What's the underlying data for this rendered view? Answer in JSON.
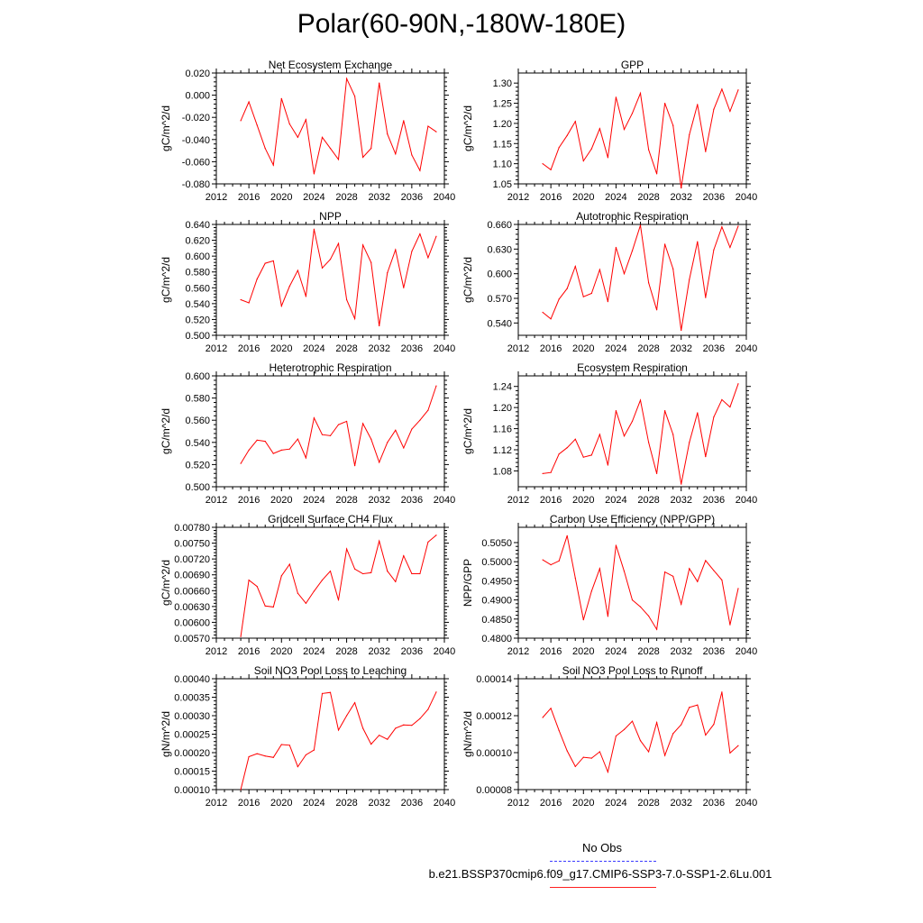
{
  "title": "Polar(60-90N,-180W-180E)",
  "legend": {
    "obs_label": "No Obs",
    "model_label": "b.e21.BSSP370cmip6.f09_g17.CMIP6-SSP3-7.0-SSP1-2.6Lu.001",
    "obs_color": "#3a3aff",
    "model_color": "#ff0000"
  },
  "chart_data": [
    {
      "type": "line",
      "title": "Net Ecosystem Exchange",
      "ylabel": "gC/m^2/d",
      "xlim": [
        2012,
        2040
      ],
      "ylim": [
        -0.08,
        0.02
      ],
      "xticks": [
        "2012",
        "2016",
        "2020",
        "2024",
        "2028",
        "2032",
        "2036",
        "2040"
      ],
      "yticks": [
        "-0.080",
        "-0.060",
        "-0.040",
        "-0.020",
        "0.000",
        "0.020"
      ],
      "x": [
        2015,
        2016,
        2017,
        2018,
        2019,
        2020,
        2021,
        2022,
        2023,
        2024,
        2025,
        2026,
        2027,
        2028,
        2029,
        2030,
        2031,
        2032,
        2033,
        2034,
        2035,
        2036,
        2037,
        2038,
        2039
      ],
      "values": [
        -0.023,
        -0.006,
        -0.027,
        -0.048,
        -0.063,
        -0.003,
        -0.026,
        -0.038,
        -0.022,
        -0.071,
        -0.038,
        -0.048,
        -0.058,
        0.015,
        -0.001,
        -0.056,
        -0.048,
        0.011,
        -0.035,
        -0.053,
        -0.023,
        -0.054,
        -0.068,
        -0.028,
        -0.033
      ]
    },
    {
      "type": "line",
      "title": "GPP",
      "ylabel": "gC/m^2/d",
      "xlim": [
        2012,
        2040
      ],
      "ylim": [
        1.05,
        1.325
      ],
      "xticks": [
        "2012",
        "2016",
        "2020",
        "2024",
        "2028",
        "2032",
        "2036",
        "2040"
      ],
      "yticks": [
        "1.05",
        "1.10",
        "1.15",
        "1.20",
        "1.25",
        "1.30"
      ],
      "x": [
        2015,
        2016,
        2017,
        2018,
        2019,
        2020,
        2021,
        2022,
        2023,
        2024,
        2025,
        2026,
        2027,
        2028,
        2029,
        2030,
        2031,
        2032,
        2033,
        2034,
        2035,
        2036,
        2037,
        2038,
        2039
      ],
      "values": [
        1.1,
        1.085,
        1.14,
        1.17,
        1.205,
        1.107,
        1.137,
        1.187,
        1.115,
        1.265,
        1.185,
        1.225,
        1.275,
        1.135,
        1.075,
        1.25,
        1.195,
        1.04,
        1.172,
        1.247,
        1.13,
        1.235,
        1.285,
        1.23,
        1.283
      ]
    },
    {
      "type": "line",
      "title": "NPP",
      "ylabel": "gC/m^2/d",
      "xlim": [
        2012,
        2040
      ],
      "ylim": [
        0.5,
        0.64
      ],
      "xticks": [
        "2012",
        "2016",
        "2020",
        "2024",
        "2028",
        "2032",
        "2036",
        "2040"
      ],
      "yticks": [
        "0.500",
        "0.520",
        "0.540",
        "0.560",
        "0.580",
        "0.600",
        "0.620",
        "0.640"
      ],
      "x": [
        2015,
        2016,
        2017,
        2018,
        2019,
        2020,
        2021,
        2022,
        2023,
        2024,
        2025,
        2026,
        2027,
        2028,
        2029,
        2030,
        2031,
        2032,
        2033,
        2034,
        2035,
        2036,
        2037,
        2038,
        2039
      ],
      "values": [
        0.545,
        0.541,
        0.571,
        0.591,
        0.594,
        0.537,
        0.562,
        0.582,
        0.549,
        0.634,
        0.585,
        0.596,
        0.616,
        0.545,
        0.521,
        0.614,
        0.592,
        0.512,
        0.579,
        0.608,
        0.56,
        0.606,
        0.628,
        0.598,
        0.625
      ]
    },
    {
      "type": "line",
      "title": "Autotrophic Respiration",
      "ylabel": "gC/m^2/d",
      "xlim": [
        2012,
        2040
      ],
      "ylim": [
        0.525,
        0.66
      ],
      "xticks": [
        "2012",
        "2016",
        "2020",
        "2024",
        "2028",
        "2032",
        "2036",
        "2040"
      ],
      "yticks": [
        "0.540",
        "0.570",
        "0.600",
        "0.630",
        "0.660"
      ],
      "x": [
        2015,
        2016,
        2017,
        2018,
        2019,
        2020,
        2021,
        2022,
        2023,
        2024,
        2025,
        2026,
        2027,
        2028,
        2029,
        2030,
        2031,
        2032,
        2033,
        2034,
        2035,
        2036,
        2037,
        2038,
        2039
      ],
      "values": [
        0.553,
        0.545,
        0.569,
        0.582,
        0.609,
        0.572,
        0.576,
        0.605,
        0.566,
        0.632,
        0.6,
        0.628,
        0.659,
        0.589,
        0.556,
        0.636,
        0.606,
        0.531,
        0.593,
        0.639,
        0.571,
        0.629,
        0.657,
        0.632,
        0.658
      ]
    },
    {
      "type": "line",
      "title": "Heterotrophic Respiration",
      "ylabel": "gC/m^2/d",
      "xlim": [
        2012,
        2040
      ],
      "ylim": [
        0.5,
        0.6
      ],
      "xticks": [
        "2012",
        "2016",
        "2020",
        "2024",
        "2028",
        "2032",
        "2036",
        "2040"
      ],
      "yticks": [
        "0.500",
        "0.520",
        "0.540",
        "0.560",
        "0.580",
        "0.600"
      ],
      "x": [
        2015,
        2016,
        2017,
        2018,
        2019,
        2020,
        2021,
        2022,
        2023,
        2024,
        2025,
        2026,
        2027,
        2028,
        2029,
        2030,
        2031,
        2032,
        2033,
        2034,
        2035,
        2036,
        2037,
        2038,
        2039
      ],
      "values": [
        0.521,
        0.533,
        0.542,
        0.541,
        0.53,
        0.533,
        0.534,
        0.543,
        0.526,
        0.562,
        0.547,
        0.546,
        0.556,
        0.559,
        0.519,
        0.557,
        0.543,
        0.522,
        0.54,
        0.551,
        0.535,
        0.552,
        0.56,
        0.569,
        0.591
      ]
    },
    {
      "type": "line",
      "title": "Ecosystem Respiration",
      "ylabel": "gC/m^2/d",
      "xlim": [
        2012,
        2040
      ],
      "ylim": [
        1.05,
        1.26
      ],
      "xticks": [
        "2012",
        "2016",
        "2020",
        "2024",
        "2028",
        "2032",
        "2036",
        "2040"
      ],
      "yticks": [
        "1.08",
        "1.12",
        "1.16",
        "1.20",
        "1.24"
      ],
      "x": [
        2015,
        2016,
        2017,
        2018,
        2019,
        2020,
        2021,
        2022,
        2023,
        2024,
        2025,
        2026,
        2027,
        2028,
        2029,
        2030,
        2031,
        2032,
        2033,
        2034,
        2035,
        2036,
        2037,
        2038,
        2039
      ],
      "values": [
        1.075,
        1.077,
        1.112,
        1.124,
        1.14,
        1.106,
        1.11,
        1.149,
        1.091,
        1.194,
        1.146,
        1.174,
        1.214,
        1.134,
        1.075,
        1.194,
        1.149,
        1.055,
        1.134,
        1.19,
        1.107,
        1.182,
        1.215,
        1.201,
        1.245
      ]
    },
    {
      "type": "line",
      "title": "Gridcell Surface CH4 Flux",
      "ylabel": "gC/m^2/d",
      "xlim": [
        2012,
        2040
      ],
      "ylim": [
        0.0057,
        0.0078
      ],
      "xticks": [
        "2012",
        "2016",
        "2020",
        "2024",
        "2028",
        "2032",
        "2036",
        "2040"
      ],
      "yticks": [
        "0.00570",
        "0.00600",
        "0.00630",
        "0.00660",
        "0.00690",
        "0.00720",
        "0.00750",
        "0.00780"
      ],
      "x": [
        2015,
        2016,
        2017,
        2018,
        2019,
        2020,
        2021,
        2022,
        2023,
        2024,
        2025,
        2026,
        2027,
        2028,
        2029,
        2030,
        2031,
        2032,
        2033,
        2034,
        2035,
        2036,
        2037,
        2038,
        2039
      ],
      "values": [
        0.00573,
        0.0068,
        0.00668,
        0.00631,
        0.00629,
        0.00688,
        0.0071,
        0.00655,
        0.00636,
        0.00659,
        0.0068,
        0.00697,
        0.00642,
        0.00739,
        0.00701,
        0.00692,
        0.00694,
        0.00754,
        0.00697,
        0.00677,
        0.00726,
        0.00692,
        0.00692,
        0.00752,
        0.00765
      ]
    },
    {
      "type": "line",
      "title": "Carbon Use Efficiency (NPP/GPP)",
      "ylabel": "NPP/GPP",
      "xlim": [
        2012,
        2040
      ],
      "ylim": [
        0.48,
        0.509
      ],
      "xticks": [
        "2012",
        "2016",
        "2020",
        "2024",
        "2028",
        "2032",
        "2036",
        "2040"
      ],
      "yticks": [
        "0.4800",
        "0.4850",
        "0.4900",
        "0.4950",
        "0.5000",
        "0.5050"
      ],
      "x": [
        2015,
        2016,
        2017,
        2018,
        2019,
        2020,
        2021,
        2022,
        2023,
        2024,
        2025,
        2026,
        2027,
        2028,
        2029,
        2030,
        2031,
        2032,
        2033,
        2034,
        2035,
        2036,
        2037,
        2038,
        2039
      ],
      "values": [
        0.5005,
        0.4992,
        0.5002,
        0.5068,
        0.4957,
        0.4848,
        0.4923,
        0.4982,
        0.4857,
        0.5043,
        0.4975,
        0.49,
        0.4882,
        0.4858,
        0.4823,
        0.4973,
        0.4962,
        0.4889,
        0.4982,
        0.4948,
        0.5003,
        0.4977,
        0.4952,
        0.4835,
        0.493
      ]
    },
    {
      "type": "line",
      "title": "Soil NO3 Pool Loss to Leaching",
      "ylabel": "gN/m^2/d",
      "xlim": [
        2012,
        2040
      ],
      "ylim": [
        0.0001,
        0.0004
      ],
      "xticks": [
        "2012",
        "2016",
        "2020",
        "2024",
        "2028",
        "2032",
        "2036",
        "2040"
      ],
      "yticks": [
        "0.00010",
        "0.00015",
        "0.00020",
        "0.00025",
        "0.00030",
        "0.00035",
        "0.00040"
      ],
      "x": [
        2015,
        2016,
        2017,
        2018,
        2019,
        2020,
        2021,
        2022,
        2023,
        2024,
        2025,
        2026,
        2027,
        2028,
        2029,
        2030,
        2031,
        2032,
        2033,
        2034,
        2035,
        2036,
        2037,
        2038,
        2039
      ],
      "values": [
        0.0001,
        0.000189,
        0.000197,
        0.000191,
        0.000187,
        0.000222,
        0.00022,
        0.000162,
        0.000194,
        0.000207,
        0.00036,
        0.000363,
        0.000261,
        0.0003,
        0.000335,
        0.000266,
        0.000223,
        0.000247,
        0.000236,
        0.000266,
        0.000275,
        0.000274,
        0.000292,
        0.000317,
        0.000364
      ]
    },
    {
      "type": "line",
      "title": "Soil NO3 Pool Loss to Runoff",
      "ylabel": "gN/m^2/d",
      "xlim": [
        2012,
        2040
      ],
      "ylim": [
        8e-05,
        0.00014
      ],
      "xticks": [
        "2012",
        "2016",
        "2020",
        "2024",
        "2028",
        "2032",
        "2036",
        "2040"
      ],
      "yticks": [
        "0.00008",
        "0.00010",
        "0.00012",
        "0.00014"
      ],
      "x": [
        2015,
        2016,
        2017,
        2018,
        2019,
        2020,
        2021,
        2022,
        2023,
        2024,
        2025,
        2026,
        2027,
        2028,
        2029,
        2030,
        2031,
        2032,
        2033,
        2034,
        2035,
        2036,
        2037,
        2038,
        2039
      ],
      "values": [
        0.000119,
        0.000124,
        0.000112,
        0.000101,
        9.25e-05,
        9.75e-05,
        9.7e-05,
        0.0001005,
        8.95e-05,
        0.000109,
        0.0001125,
        0.000117,
        0.0001065,
        0.0001005,
        0.0001163,
        9.85e-05,
        0.0001103,
        0.0001151,
        0.0001245,
        0.0001258,
        0.0001095,
        0.0001153,
        0.0001328,
        9.98e-05,
        0.0001038
      ]
    }
  ]
}
